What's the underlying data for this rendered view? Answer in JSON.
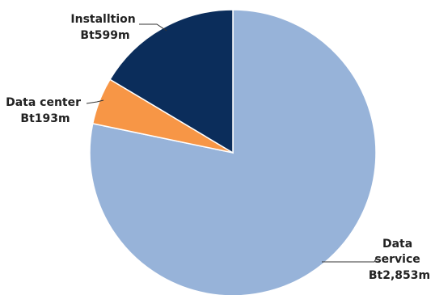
{
  "chart_data": {
    "type": "pie",
    "slices": [
      {
        "label_lines": [
          "Data",
          "service",
          "Bt2,853m"
        ],
        "value": 2853,
        "color": "#97B3D9"
      },
      {
        "label_lines": [
          "Data center",
          "Bt193m"
        ],
        "value": 193,
        "color": "#F79646"
      },
      {
        "label_lines": [
          "Installtion",
          "Bt599m"
        ],
        "value": 599,
        "color": "#0B2D5B"
      }
    ],
    "start_position": "12 o'clock",
    "direction": "clockwise",
    "legend": "none"
  }
}
